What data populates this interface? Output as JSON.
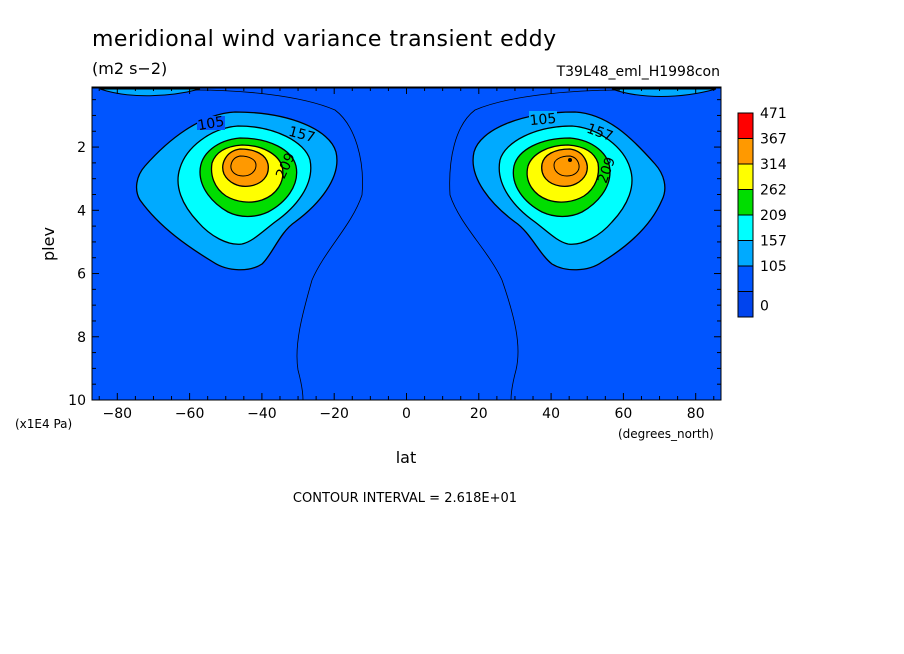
{
  "chart_data": {
    "type": "contour",
    "title": "meridional wind variance transient eddy",
    "units": "(m2 s−2)",
    "run_label": "T39L48_eml_H1998con",
    "xlabel": "lat",
    "x_units": "(degrees_north)",
    "ylabel": "plev",
    "y_units": "(x1E4 Pa)",
    "xlim": [
      -87,
      87
    ],
    "ylim": [
      10,
      0.1
    ],
    "x_ticks": [
      -80,
      -60,
      -40,
      -20,
      0,
      20,
      40,
      60,
      80
    ],
    "x_tick_labels": [
      "−80",
      "−60",
      "−40",
      "−20",
      "0",
      "20",
      "40",
      "60",
      "80"
    ],
    "y_ticks": [
      2,
      4,
      6,
      8,
      10
    ],
    "y_tick_labels": [
      "2",
      "4",
      "6",
      "8",
      "10"
    ],
    "contour_interval_text": "CONTOUR INTERVAL = 2.618E+01",
    "contour_labels": [
      "105",
      "157",
      "209"
    ],
    "colorbar": {
      "levels": [
        "471",
        "367",
        "314",
        "262",
        "209",
        "157",
        "105",
        "0"
      ],
      "colors": [
        "#ff0000",
        "#ff9900",
        "#ffff00",
        "#00dd00",
        "#00ffff",
        "#00aaff",
        "#0055ff",
        "#0044ee"
      ]
    },
    "fill_colors": {
      "background": "#0055ff",
      "c1": "#00aaff",
      "c2": "#00ffff",
      "c3": "#00dd00",
      "c4": "#ffff00",
      "c5": "#ff9900"
    }
  }
}
